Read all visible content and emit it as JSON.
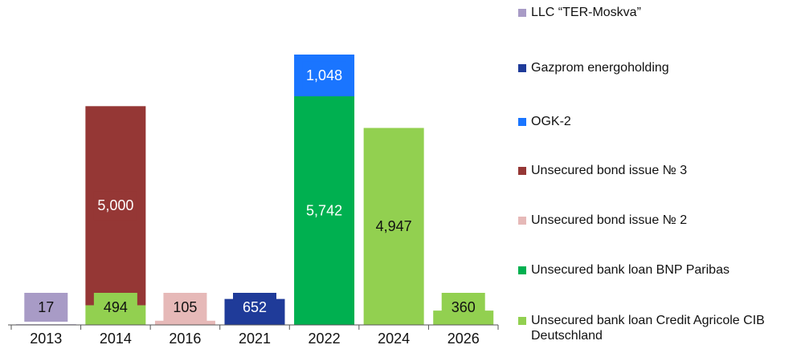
{
  "chart_data": {
    "type": "bar",
    "stacked": true,
    "categories": [
      "2013",
      "2014",
      "2016",
      "2021",
      "2022",
      "2024",
      "2026"
    ],
    "series": [
      {
        "name": "LLC “TER-Moskva”",
        "color": "#a89bc6",
        "values": [
          17,
          null,
          null,
          null,
          null,
          null,
          null
        ],
        "value_labels": [
          "17",
          null,
          null,
          null,
          null,
          null,
          null
        ]
      },
      {
        "name": "Gazprom energoholding",
        "color": "#1f3b99",
        "values": [
          null,
          null,
          null,
          652,
          null,
          null,
          null
        ],
        "value_labels": [
          null,
          null,
          null,
          "652",
          null,
          null,
          null
        ]
      },
      {
        "name": "OGK-2",
        "color": "#1a75ff",
        "values": [
          null,
          null,
          null,
          null,
          1048,
          null,
          null
        ],
        "value_labels": [
          null,
          null,
          null,
          null,
          "1,048",
          null,
          null
        ]
      },
      {
        "name": "Unsecured bond issue № 3",
        "color": "#953735",
        "values": [
          null,
          5000,
          null,
          null,
          null,
          null,
          null
        ],
        "value_labels": [
          null,
          "5,000",
          null,
          null,
          null,
          null,
          null
        ]
      },
      {
        "name": "Unsecured bond issue № 2",
        "color": "#e6b9b8",
        "values": [
          null,
          null,
          105,
          null,
          null,
          null,
          null
        ],
        "value_labels": [
          null,
          null,
          "105",
          null,
          null,
          null,
          null
        ]
      },
      {
        "name": "Unsecured bank loan BNP Paribas",
        "color": "#00b050",
        "values": [
          null,
          null,
          null,
          null,
          5742,
          null,
          null
        ],
        "value_labels": [
          null,
          null,
          null,
          null,
          "5,742",
          null,
          null
        ]
      },
      {
        "name": "Unsecured bank loan Credit Agricole CIB Deutschland",
        "color": "#92d050",
        "values": [
          null,
          494,
          null,
          null,
          null,
          4947,
          360
        ],
        "value_labels": [
          null,
          "494",
          null,
          null,
          null,
          "4,947",
          "360"
        ]
      }
    ]
  }
}
